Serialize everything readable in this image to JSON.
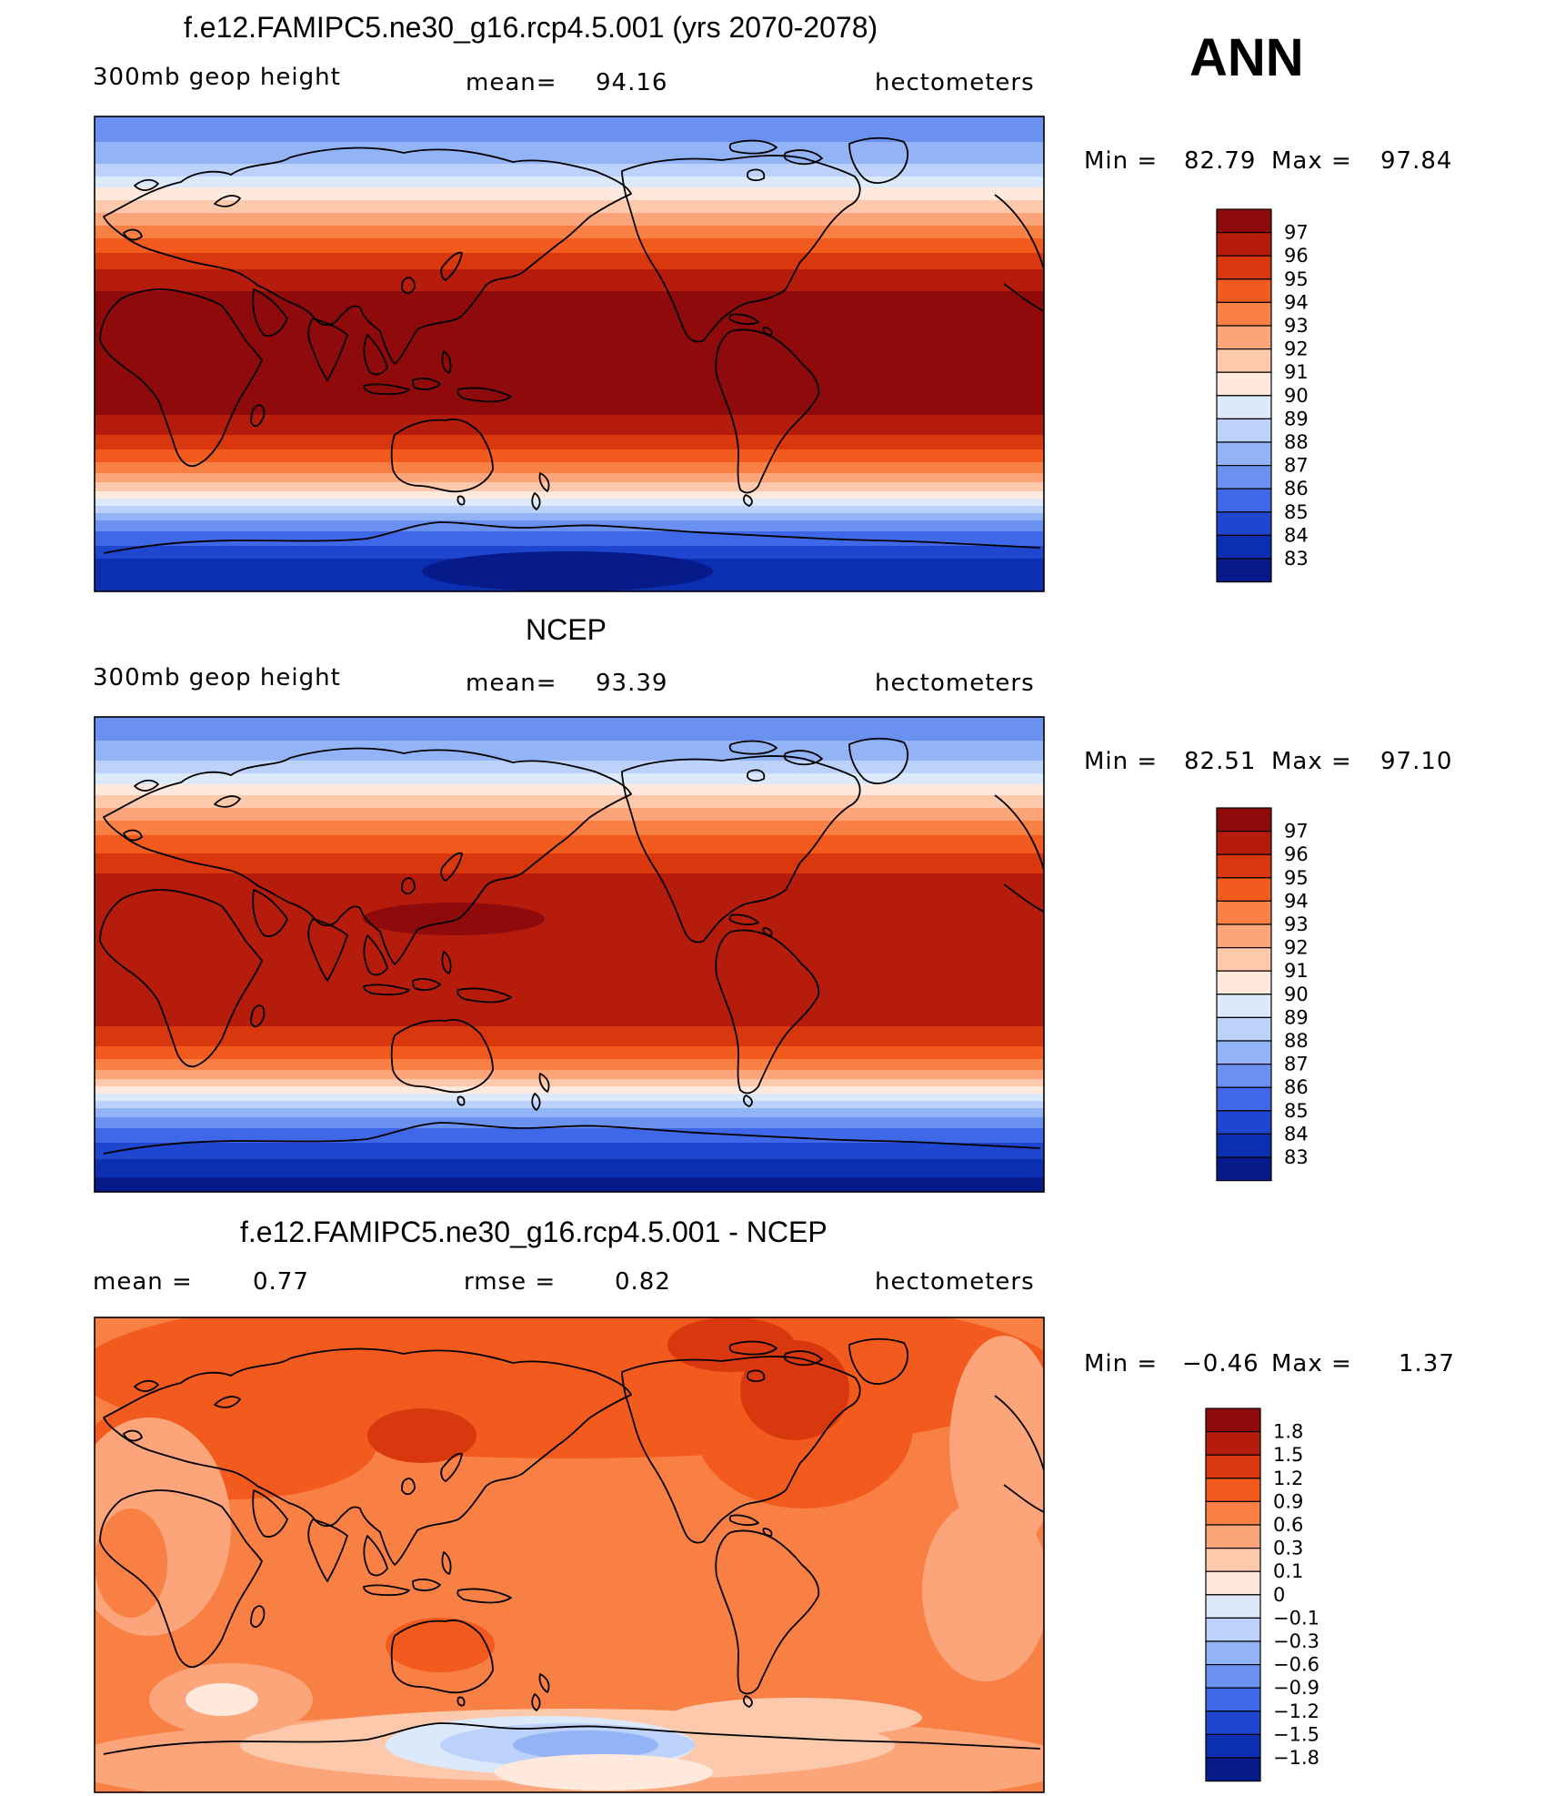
{
  "season": "ANN",
  "panels": [
    {
      "title": "f.e12.FAMIPC5.ne30_g16.rcp4.5.001 (yrs 2070-2078)",
      "info_left": "300mb  geop  height",
      "mean_label": "mean=",
      "mean_value": "94.16",
      "units": "hectometers",
      "min_label": "Min  =",
      "min_value": "82.79",
      "max_label": "Max  =",
      "max_value": "97.84",
      "colorbar": {
        "labels": [
          "97",
          "96",
          "95",
          "94",
          "93",
          "92",
          "91",
          "90",
          "89",
          "88",
          "87",
          "86",
          "85",
          "84",
          "83"
        ],
        "colors": [
          "#8f0a0a",
          "#b51c0c",
          "#d9380f",
          "#f25a1e",
          "#f98045",
          "#fca57b",
          "#fdc9ad",
          "#fee9dc",
          "#dce9fb",
          "#bcd2fb",
          "#93b3f7",
          "#6b91f0",
          "#3f68e8",
          "#1e46cf",
          "#0c2eb0",
          "#061a8a"
        ]
      }
    },
    {
      "title": "NCEP",
      "info_left": "300mb  geop  height",
      "mean_label": "mean=",
      "mean_value": "93.39",
      "units": "hectometers",
      "min_label": "Min  =",
      "min_value": "82.51",
      "max_label": "Max  =",
      "max_value": "97.10",
      "colorbar": {
        "labels": [
          "97",
          "96",
          "95",
          "94",
          "93",
          "92",
          "91",
          "90",
          "89",
          "88",
          "87",
          "86",
          "85",
          "84",
          "83"
        ],
        "colors": [
          "#8f0a0a",
          "#b51c0c",
          "#d9380f",
          "#f25a1e",
          "#f98045",
          "#fca57b",
          "#fdc9ad",
          "#fee9dc",
          "#dce9fb",
          "#bcd2fb",
          "#93b3f7",
          "#6b91f0",
          "#3f68e8",
          "#1e46cf",
          "#0c2eb0",
          "#061a8a"
        ]
      }
    },
    {
      "title": "f.e12.FAMIPC5.ne30_g16.rcp4.5.001 - NCEP",
      "info_left": "mean  =",
      "info_left_value": "0.77",
      "mean_label": "rmse  =",
      "mean_value": "0.82",
      "units": "hectometers",
      "min_label": "Min  =",
      "min_value": "−0.46",
      "max_label": "Max  =",
      "max_value": "1.37",
      "colorbar": {
        "labels": [
          "1.8",
          "1.5",
          "1.2",
          "0.9",
          "0.6",
          "0.3",
          "0.1",
          "0",
          "−0.1",
          "−0.3",
          "−0.6",
          "−0.9",
          "−1.2",
          "−1.5",
          "−1.8"
        ],
        "colors": [
          "#8f0a0a",
          "#b51c0c",
          "#d9380f",
          "#f25a1e",
          "#f98045",
          "#fca57b",
          "#fdc9ad",
          "#fee9dc",
          "#dce9fb",
          "#bcd2fb",
          "#93b3f7",
          "#6b91f0",
          "#3f68e8",
          "#1e46cf",
          "#0c2eb0",
          "#061a8a"
        ]
      }
    }
  ]
}
